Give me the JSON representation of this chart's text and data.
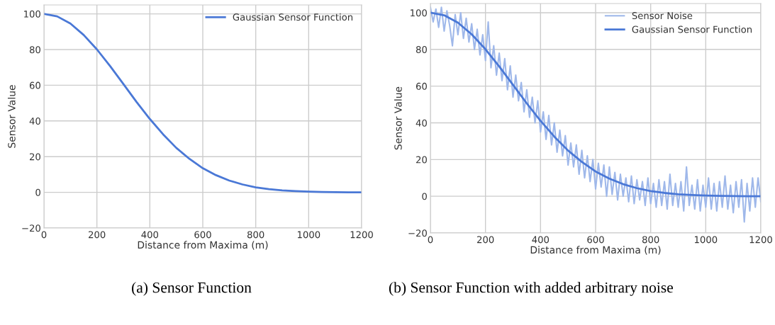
{
  "chart_data": [
    {
      "type": "line",
      "xlabel": "Distance from Maxima (m)",
      "ylabel": "Sensor Value",
      "annotations": [
        "(a) Sensor Function"
      ],
      "xlim": [
        0,
        1200
      ],
      "xticks": [
        0,
        200,
        400,
        600,
        800,
        1000,
        1200
      ],
      "ylim": [
        -20,
        105
      ],
      "yticks": [
        {
          "value": -20,
          "label": "−20"
        },
        0,
        20,
        40,
        60,
        80,
        100
      ],
      "grid": true,
      "legend": "top right",
      "series": [
        {
          "name": "Gaussian Sensor Function",
          "color": "#4a78d6",
          "x": [
            0,
            50,
            100,
            150,
            200,
            250,
            300,
            350,
            400,
            450,
            500,
            550,
            600,
            650,
            700,
            750,
            800,
            850,
            900,
            950,
            1000,
            1050,
            1100,
            1150,
            1200
          ],
          "values": [
            100,
            98.6,
            94.6,
            88.2,
            80.1,
            70.7,
            60.7,
            50.6,
            41.1,
            32.5,
            24.9,
            18.7,
            13.5,
            9.6,
            6.6,
            4.4,
            2.8,
            1.8,
            1.1,
            0.7,
            0.4,
            0.2,
            0.1,
            0,
            0
          ]
        }
      ]
    },
    {
      "type": "line",
      "xlabel": "Distance from Maxima (m)",
      "ylabel": "Sensor Value",
      "annotations": [
        "(b) Sensor Function with added arbitrary noise"
      ],
      "xlim": [
        0,
        1200
      ],
      "xticks": [
        0,
        200,
        400,
        600,
        800,
        1000,
        1200
      ],
      "ylim": [
        -20,
        105
      ],
      "yticks": [
        {
          "value": -20,
          "label": "−20"
        },
        0,
        20,
        40,
        60,
        80,
        100
      ],
      "grid": true,
      "legend": "top right",
      "series": [
        {
          "name": "Sensor Noise",
          "color": "#9fb8ea",
          "x": [
            0,
            10,
            20,
            30,
            40,
            50,
            60,
            70,
            80,
            90,
            100,
            110,
            120,
            130,
            140,
            150,
            160,
            170,
            180,
            190,
            200,
            210,
            220,
            230,
            240,
            250,
            260,
            270,
            280,
            290,
            300,
            310,
            320,
            330,
            340,
            350,
            360,
            370,
            380,
            390,
            400,
            410,
            420,
            430,
            440,
            450,
            460,
            470,
            480,
            490,
            500,
            510,
            520,
            530,
            540,
            550,
            560,
            570,
            580,
            590,
            600,
            610,
            620,
            630,
            640,
            650,
            660,
            670,
            680,
            690,
            700,
            710,
            720,
            730,
            740,
            750,
            760,
            770,
            780,
            790,
            800,
            810,
            820,
            830,
            840,
            850,
            860,
            870,
            880,
            890,
            900,
            910,
            920,
            930,
            940,
            950,
            960,
            970,
            980,
            990,
            1000,
            1010,
            1020,
            1030,
            1040,
            1050,
            1060,
            1070,
            1080,
            1090,
            1100,
            1110,
            1120,
            1130,
            1140,
            1150,
            1160,
            1170,
            1180,
            1190,
            1200
          ],
          "values": [
            103,
            95,
            102,
            92,
            103,
            90,
            101,
            93,
            82,
            99,
            88,
            100,
            86,
            97,
            84,
            94,
            80,
            91,
            77,
            88,
            74,
            95,
            70,
            82,
            66,
            78,
            63,
            75,
            58,
            71,
            54,
            66,
            52,
            62,
            46,
            58,
            43,
            54,
            40,
            52,
            35,
            46,
            31,
            44,
            28,
            40,
            24,
            36,
            22,
            33,
            17,
            29,
            16,
            28,
            12,
            25,
            10,
            22,
            8,
            20,
            4,
            18,
            5,
            17,
            0,
            16,
            1,
            13,
            -2,
            12,
            0,
            10,
            -3,
            11,
            -4,
            9,
            -2,
            8,
            -5,
            10,
            -4,
            7,
            -6,
            9,
            -5,
            8,
            -7,
            12,
            -5,
            7,
            -6,
            8,
            -8,
            16,
            -5,
            6,
            -7,
            9,
            -8,
            6,
            -6,
            10,
            -7,
            7,
            -8,
            8,
            -6,
            11,
            -7,
            6,
            -9,
            8,
            -6,
            9,
            -14,
            7,
            -8,
            10,
            -6,
            10,
            -3
          ]
        },
        {
          "name": "Gaussian Sensor Function",
          "color": "#4a78d6",
          "x": [
            0,
            50,
            100,
            150,
            200,
            250,
            300,
            350,
            400,
            450,
            500,
            550,
            600,
            650,
            700,
            750,
            800,
            850,
            900,
            950,
            1000,
            1050,
            1100,
            1150,
            1200
          ],
          "values": [
            100,
            98.6,
            94.6,
            88.2,
            80.1,
            70.7,
            60.7,
            50.6,
            41.1,
            32.5,
            24.9,
            18.7,
            13.5,
            9.6,
            6.6,
            4.4,
            2.8,
            1.8,
            1.1,
            0.7,
            0.4,
            0.2,
            0.1,
            0,
            0
          ]
        }
      ]
    }
  ]
}
